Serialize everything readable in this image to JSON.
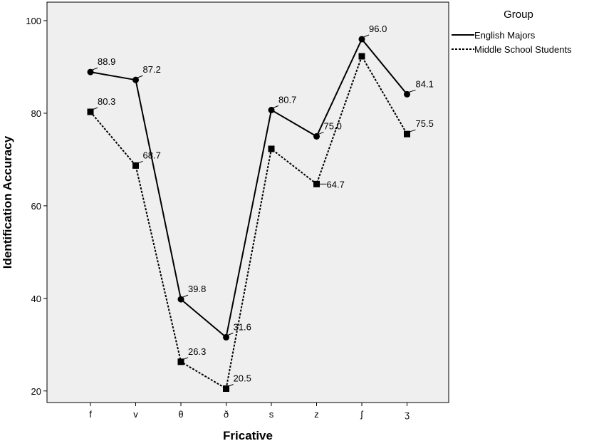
{
  "chart_data": {
    "type": "line",
    "title": "",
    "xlabel": "Fricative",
    "ylabel": "Identification Accuracy",
    "categories": [
      "f",
      "v",
      "θ",
      "ð",
      "s",
      "z",
      "ʃ",
      "ʒ"
    ],
    "yticks": [
      20,
      40,
      60,
      80,
      100
    ],
    "ylim": [
      17.5,
      104
    ],
    "grid": false,
    "legend": {
      "title": "Group",
      "placement": "top-right-outside"
    },
    "plot_background": "#efefef",
    "series": [
      {
        "name": "English Majors",
        "values": [
          88.9,
          87.2,
          39.8,
          31.6,
          80.7,
          75.0,
          96.0,
          84.1
        ],
        "labels": [
          "88.9",
          "87.2",
          "39.8",
          "31.6",
          "80.7",
          "75.0",
          "96.0",
          "84.1"
        ],
        "line_style": "solid",
        "marker": "circle",
        "color": "#000000"
      },
      {
        "name": "Middle School Students",
        "values": [
          80.3,
          68.7,
          26.3,
          20.5,
          72.3,
          64.7,
          92.3,
          75.5
        ],
        "labels": [
          "80.3",
          "68.7",
          "26.3",
          "20.5",
          "",
          "64.7",
          "",
          "75.5"
        ],
        "line_style": "dotted",
        "marker": "square",
        "color": "#000000"
      }
    ]
  }
}
